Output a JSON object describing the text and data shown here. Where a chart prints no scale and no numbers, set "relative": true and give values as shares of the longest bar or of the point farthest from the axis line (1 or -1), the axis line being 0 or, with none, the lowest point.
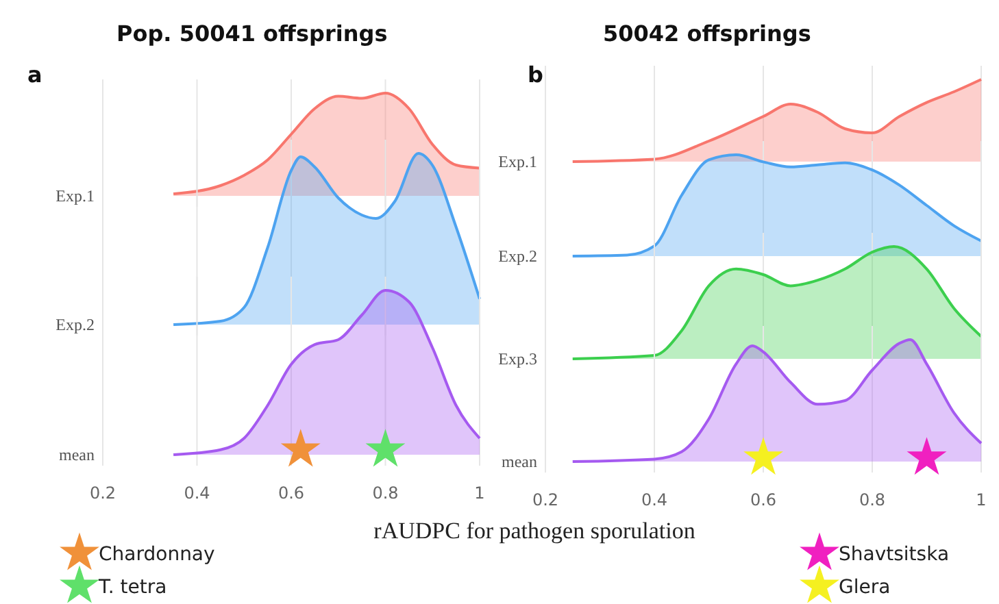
{
  "chart_data": [
    {
      "type": "area",
      "relative": true,
      "title": "Pop. 50041 offsprings",
      "annotations": [
        "a"
      ],
      "ylabel": "Exp.1",
      "xlim": [
        0.2,
        1.0
      ],
      "xticks": [
        0.2,
        0.4,
        0.6,
        0.8,
        1.0
      ],
      "grid": "x",
      "tick_labels": false,
      "series": [
        {
          "color": "#f8766d",
          "x": [
            0.35,
            0.45,
            0.5,
            0.55,
            0.6,
            0.65,
            0.7,
            0.75,
            0.8,
            0.85,
            0.9,
            0.95,
            1.0
          ],
          "values": [
            0.02,
            0.1,
            0.2,
            0.35,
            0.6,
            0.85,
            0.97,
            0.95,
            1.0,
            0.85,
            0.5,
            0.3,
            0.27
          ]
        }
      ]
    },
    {
      "type": "area",
      "relative": true,
      "ylabel": "Exp.2",
      "xlim": [
        0.2,
        1.0
      ],
      "xticks": [
        0.2,
        0.4,
        0.6,
        0.8,
        1.0
      ],
      "grid": "x",
      "tick_labels": false,
      "series": [
        {
          "color": "#4da3f0",
          "x": [
            0.35,
            0.45,
            0.5,
            0.55,
            0.6,
            0.62,
            0.65,
            0.7,
            0.75,
            0.78,
            0.82,
            0.87,
            0.9,
            0.95,
            1.0
          ],
          "values": [
            0,
            0.02,
            0.1,
            0.45,
            0.9,
            0.98,
            0.92,
            0.74,
            0.64,
            0.62,
            0.72,
            1.0,
            0.93,
            0.57,
            0.15
          ]
        }
      ]
    },
    {
      "type": "area",
      "relative": true,
      "ylabel": "mean",
      "xlabel": "rAUDPC for pathogen sporulation",
      "xlim": [
        0.2,
        1.0
      ],
      "xticks": [
        0.2,
        0.4,
        0.6,
        0.8,
        1.0
      ],
      "grid": "x",
      "tick_labels": "x",
      "legend": "bottom",
      "series": [
        {
          "color": "#a55af0",
          "x": [
            0.35,
            0.45,
            0.5,
            0.55,
            0.6,
            0.65,
            0.7,
            0.75,
            0.8,
            0.85,
            0.9,
            0.95,
            1.0
          ],
          "values": [
            0,
            0.03,
            0.1,
            0.3,
            0.55,
            0.67,
            0.7,
            0.85,
            1.0,
            0.93,
            0.65,
            0.3,
            0.1
          ]
        },
        {
          "type": "scatter",
          "name": "Chardonnay",
          "color": "#f0913a",
          "marker": "star",
          "x": [
            0.62
          ],
          "values": [
            0.03
          ]
        },
        {
          "type": "scatter",
          "name": "T. tetra",
          "color": "#5fe06a",
          "marker": "star",
          "x": [
            0.8
          ],
          "values": [
            0.03
          ]
        }
      ]
    },
    {
      "type": "area",
      "relative": true,
      "title": "50042 offsprings",
      "annotations": [
        "b"
      ],
      "ylabel": "Exp.1",
      "xlim": [
        0.2,
        1.0
      ],
      "xticks": [
        0.2,
        0.4,
        0.6,
        0.8,
        1.0
      ],
      "grid": "x",
      "tick_labels": false,
      "series": [
        {
          "color": "#f8766d",
          "x": [
            0.25,
            0.4,
            0.5,
            0.6,
            0.65,
            0.7,
            0.75,
            0.8,
            0.85,
            0.9,
            0.95,
            1.0
          ],
          "values": [
            0,
            0.03,
            0.25,
            0.55,
            0.7,
            0.6,
            0.4,
            0.35,
            0.55,
            0.72,
            0.85,
            1.0
          ]
        }
      ]
    },
    {
      "type": "area",
      "relative": true,
      "ylabel": "Exp.2",
      "xlim": [
        0.2,
        1.0
      ],
      "xticks": [
        0.2,
        0.4,
        0.6,
        0.8,
        1.0
      ],
      "grid": "x",
      "tick_labels": false,
      "series": [
        {
          "color": "#4da3f0",
          "x": [
            0.25,
            0.35,
            0.4,
            0.45,
            0.5,
            0.55,
            0.6,
            0.65,
            0.7,
            0.75,
            0.8,
            0.85,
            0.9,
            0.95,
            1.0
          ],
          "values": [
            0,
            0.01,
            0.1,
            0.6,
            0.95,
            1.0,
            0.93,
            0.88,
            0.9,
            0.92,
            0.85,
            0.7,
            0.5,
            0.3,
            0.15
          ]
        }
      ]
    },
    {
      "type": "area",
      "relative": true,
      "ylabel": "Exp.3",
      "xlim": [
        0.2,
        1.0
      ],
      "xticks": [
        0.2,
        0.4,
        0.6,
        0.8,
        1.0
      ],
      "grid": "x",
      "tick_labels": false,
      "series": [
        {
          "color": "#3ccf4e",
          "x": [
            0.25,
            0.4,
            0.45,
            0.5,
            0.55,
            0.6,
            0.65,
            0.7,
            0.75,
            0.8,
            0.84,
            0.9,
            0.95,
            1.0
          ],
          "values": [
            0,
            0.03,
            0.25,
            0.65,
            0.8,
            0.75,
            0.65,
            0.7,
            0.8,
            0.95,
            1.0,
            0.8,
            0.45,
            0.2
          ]
        }
      ]
    },
    {
      "type": "area",
      "relative": true,
      "ylabel": "mean",
      "xlim": [
        0.2,
        1.0
      ],
      "xticks": [
        0.2,
        0.4,
        0.6,
        0.8,
        1.0
      ],
      "grid": "x",
      "tick_labels": "x",
      "legend": "bottom",
      "series": [
        {
          "color": "#a55af0",
          "x": [
            0.25,
            0.4,
            0.45,
            0.5,
            0.55,
            0.58,
            0.6,
            0.65,
            0.7,
            0.75,
            0.8,
            0.85,
            0.87,
            0.9,
            0.95,
            1.0
          ],
          "values": [
            0,
            0.02,
            0.08,
            0.35,
            0.8,
            0.95,
            0.9,
            0.65,
            0.47,
            0.5,
            0.75,
            0.97,
            1.0,
            0.8,
            0.4,
            0.15
          ]
        },
        {
          "type": "scatter",
          "name": "Shavtsitska",
          "color": "#f020c0",
          "marker": "star",
          "x": [
            0.9
          ],
          "values": [
            0.03
          ]
        },
        {
          "type": "scatter",
          "name": "Glera",
          "color": "#f5f020",
          "marker": "star",
          "x": [
            0.6
          ],
          "values": [
            0.03
          ]
        }
      ]
    }
  ]
}
